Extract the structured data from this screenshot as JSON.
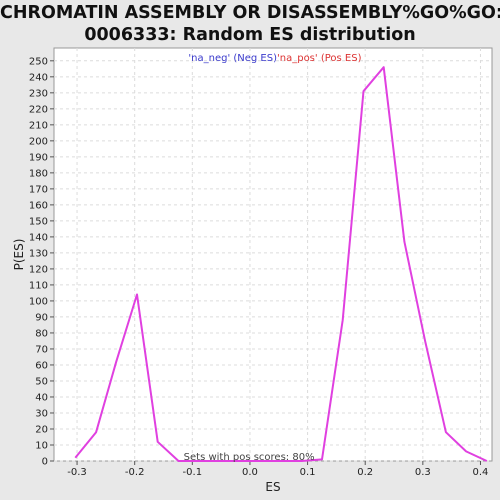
{
  "title_line1": "CHROMATIN ASSEMBLY OR DISASSEMBLY%GO%GO:",
  "title_line2": "0006333: Random ES distribution",
  "chart_data": {
    "type": "line",
    "xlabel": "ES",
    "ylabel": "P(ES)",
    "xlim": [
      -0.34,
      0.42
    ],
    "ylim": [
      0,
      258
    ],
    "xticks": [
      -0.3,
      -0.2,
      -0.1,
      0.0,
      0.1,
      0.2,
      0.3,
      0.4
    ],
    "xtick_labels": [
      "-0.3",
      "-0.2",
      "-0.1",
      "0.0",
      "0.1",
      "0.2",
      "0.3",
      "0.4"
    ],
    "yticks": [
      0,
      10,
      20,
      30,
      40,
      50,
      60,
      70,
      80,
      90,
      100,
      110,
      120,
      130,
      140,
      150,
      160,
      170,
      180,
      190,
      200,
      210,
      220,
      230,
      240,
      250
    ],
    "grid": true,
    "legend_position": "top-center",
    "series": [
      {
        "name": "'na_neg' (Neg ES)",
        "color": "#3a3acc",
        "x": [],
        "y": []
      },
      {
        "name": "'na_pos' (Pos ES)",
        "color": "#e040e0",
        "legend_color": "#dd3333",
        "x": [
          -0.303,
          -0.267,
          -0.232,
          -0.196,
          -0.16,
          -0.124,
          -0.089,
          -0.053,
          -0.017,
          0.018,
          0.054,
          0.09,
          0.125,
          0.161,
          0.197,
          0.232,
          0.268,
          0.304,
          0.34,
          0.375,
          0.411
        ],
        "y": [
          2,
          18,
          62,
          104,
          12,
          0,
          0,
          0,
          0,
          0,
          0,
          0,
          1,
          88,
          231,
          246,
          137,
          75,
          18,
          6,
          0
        ]
      }
    ],
    "annotation": "Sets with pos scores: 80%"
  }
}
